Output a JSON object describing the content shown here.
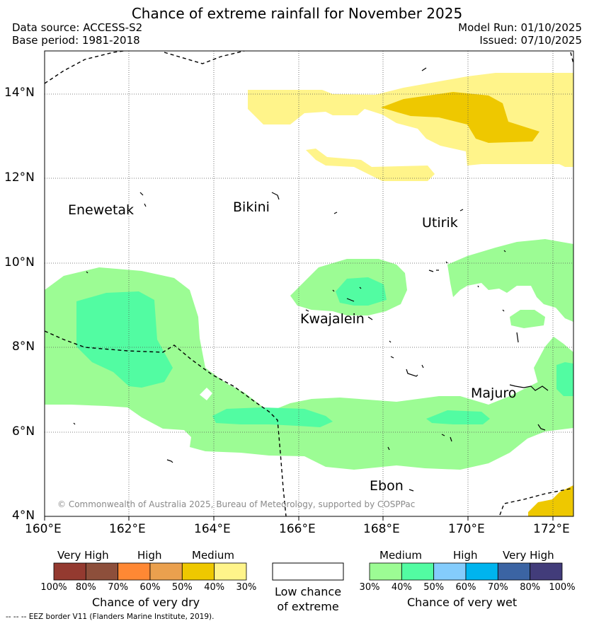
{
  "title": "Chance of extreme rainfall for November 2025",
  "data_source": "Data source: ACCESS-S2",
  "base_period": "Base period: 1981-2018",
  "model_run": "Model Run: 01/10/2025",
  "issued": "Issued: 07/10/2025",
  "lat_labels": [
    "14°N",
    "12°N",
    "10°N",
    "8°N",
    "6°N",
    "4°N"
  ],
  "lon_labels": [
    "160°E",
    "162°E",
    "164°E",
    "166°E",
    "168°E",
    "170°E",
    "172°E"
  ],
  "places": {
    "enewetak": "Enewetak",
    "bikini": "Bikini",
    "utirik": "Utirik",
    "kwajalein": "Kwajalein",
    "majuro": "Majuro",
    "ebon": "Ebon"
  },
  "copyright": "© Commonwealth of Australia 2025, Bureau of Meteorology, supported by COSPPac",
  "legend_dry": {
    "headers": [
      "Very High",
      "High",
      "Medium"
    ],
    "colors": [
      "#943a30",
      "#8d4f3b",
      "#ff8834",
      "#eaa04e",
      "#eec800",
      "#fff48a"
    ],
    "ticks": [
      "100%",
      "80%",
      "70%",
      "60%",
      "50%",
      "40%",
      "30%"
    ],
    "title": "Chance of very dry"
  },
  "legend_low": {
    "line1": "Low chance",
    "line2": "of extreme"
  },
  "legend_wet": {
    "headers": [
      "Medium",
      "High",
      "Very High"
    ],
    "colors": [
      "#9cfc94",
      "#52fca2",
      "#84ccfc",
      "#00b4ee",
      "#3b64a3",
      "#423c7a"
    ],
    "ticks": [
      "30%",
      "40%",
      "50%",
      "60%",
      "70%",
      "80%",
      "100%"
    ],
    "title": "Chance of very wet"
  },
  "footnote": "--  --  -- EEZ border V11 (Flanders Marine Institute, 2019)."
}
